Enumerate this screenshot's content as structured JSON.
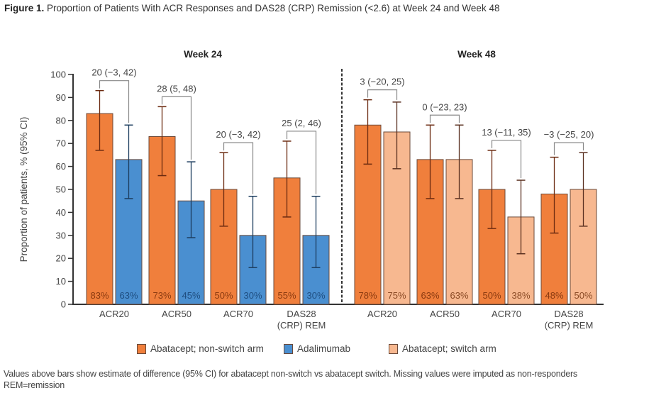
{
  "figure": {
    "label": "Figure 1.",
    "title": "Proportion of Patients With ACR Responses and DAS28 (CRP) Remission (<2.6) at Week 24 and Week 48"
  },
  "footnotes": [
    "Values above bars show estimate of difference (95% CI) for abatacept non-switch vs abatacept switch. Missing values were imputed as non-responders",
    "REM=remission"
  ],
  "chart_data": {
    "type": "bar",
    "title": "Proportion of Patients With ACR Responses and DAS28 (CRP) Remission (<2.6) at Week 24 and Week 48",
    "ylabel": "Proportion of patients, % (95% CI)",
    "xlabel": "",
    "ylim": [
      0,
      100
    ],
    "yticks": [
      0,
      10,
      20,
      30,
      40,
      50,
      60,
      70,
      80,
      90,
      100
    ],
    "grid": false,
    "legend_position": "bottom",
    "legend": [
      {
        "name": "Abatacept; non-switch arm",
        "color": "#f07f3c"
      },
      {
        "name": "Adalimumab",
        "color": "#4a8fd0"
      },
      {
        "name": "Abatacept; switch arm",
        "color": "#f7b890"
      }
    ],
    "panels": [
      {
        "title": "Week 24",
        "categories": [
          "ACR20",
          "ACR50",
          "ACR70",
          "DAS28 (CRP) REM"
        ],
        "category_lines": [
          [
            "ACR20"
          ],
          [
            "ACR50"
          ],
          [
            "ACR70"
          ],
          [
            "DAS28",
            "(CRP) REM"
          ]
        ],
        "series": [
          {
            "name": "Abatacept; non-switch arm",
            "color": "#f07f3c",
            "label_color": "#8a3a10",
            "err_color": "#6b2a10",
            "values": [
              83,
              73,
              50,
              55
            ],
            "ci_low": [
              67,
              56,
              34,
              38
            ],
            "ci_high": [
              93,
              86,
              66,
              71
            ]
          },
          {
            "name": "Adalimumab",
            "color": "#4a8fd0",
            "label_color": "#1f4e80",
            "err_color": "#1c3d5e",
            "values": [
              63,
              45,
              30,
              30
            ],
            "ci_low": [
              46,
              29,
              16,
              16
            ],
            "ci_high": [
              78,
              62,
              47,
              47
            ]
          }
        ],
        "differences": [
          "20 (−3, 42)",
          "28 (5, 48)",
          "20 (−3, 42)",
          "25 (2, 46)"
        ]
      },
      {
        "title": "Week 48",
        "categories": [
          "ACR20",
          "ACR50",
          "ACR70",
          "DAS28 (CRP) REM"
        ],
        "category_lines": [
          [
            "ACR20"
          ],
          [
            "ACR50"
          ],
          [
            "ACR70"
          ],
          [
            "DAS28",
            "(CRP) REM"
          ]
        ],
        "series": [
          {
            "name": "Abatacept; non-switch arm",
            "color": "#f07f3c",
            "label_color": "#8a3a10",
            "err_color": "#6b2a10",
            "values": [
              78,
              63,
              50,
              48
            ],
            "ci_low": [
              61,
              46,
              33,
              31
            ],
            "ci_high": [
              89,
              78,
              67,
              64
            ]
          },
          {
            "name": "Abatacept; switch arm",
            "color": "#f7b890",
            "label_color": "#8a4a25",
            "err_color": "#5a3020",
            "values": [
              75,
              63,
              38,
              50
            ],
            "ci_low": [
              59,
              46,
              22,
              34
            ],
            "ci_high": [
              88,
              78,
              54,
              66
            ]
          }
        ],
        "differences": [
          "3 (−20, 25)",
          "0 (−23, 23)",
          "13 (−11, 35)",
          "−3 (−25, 20)"
        ]
      }
    ]
  }
}
